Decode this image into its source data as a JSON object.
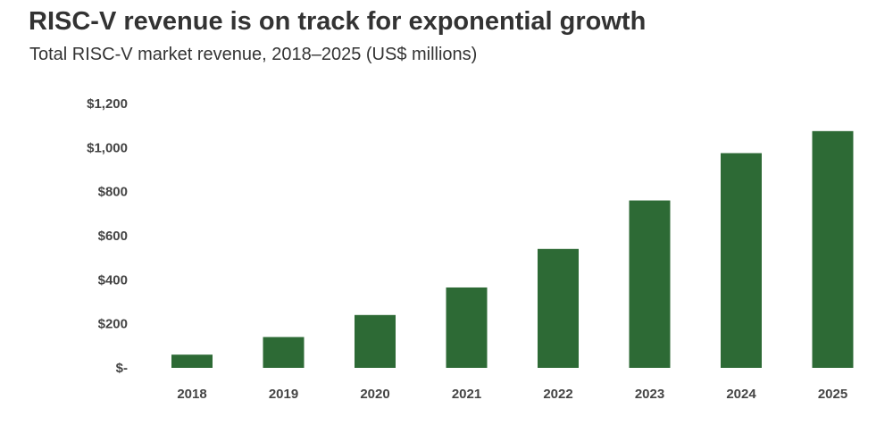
{
  "colors": {
    "bar": "#2d6a35",
    "text": "#333333"
  },
  "chart_data": {
    "type": "bar",
    "title": "RISC-V revenue is on track for exponential growth",
    "subtitle": "Total RISC-V market revenue, 2018–2025 (US$ millions)",
    "xlabel": "",
    "ylabel": "",
    "categories": [
      "2018",
      "2019",
      "2020",
      "2021",
      "2022",
      "2023",
      "2024",
      "2025"
    ],
    "values": [
      60,
      140,
      240,
      365,
      540,
      760,
      975,
      1075
    ],
    "ylim": [
      0,
      1200
    ],
    "yticks": [
      0,
      200,
      400,
      600,
      800,
      1000,
      1200
    ],
    "ytick_labels": [
      "$-",
      "$200",
      "$400",
      "$600",
      "$800",
      "$1,000",
      "$1,200"
    ],
    "grid": false,
    "legend": "none"
  }
}
